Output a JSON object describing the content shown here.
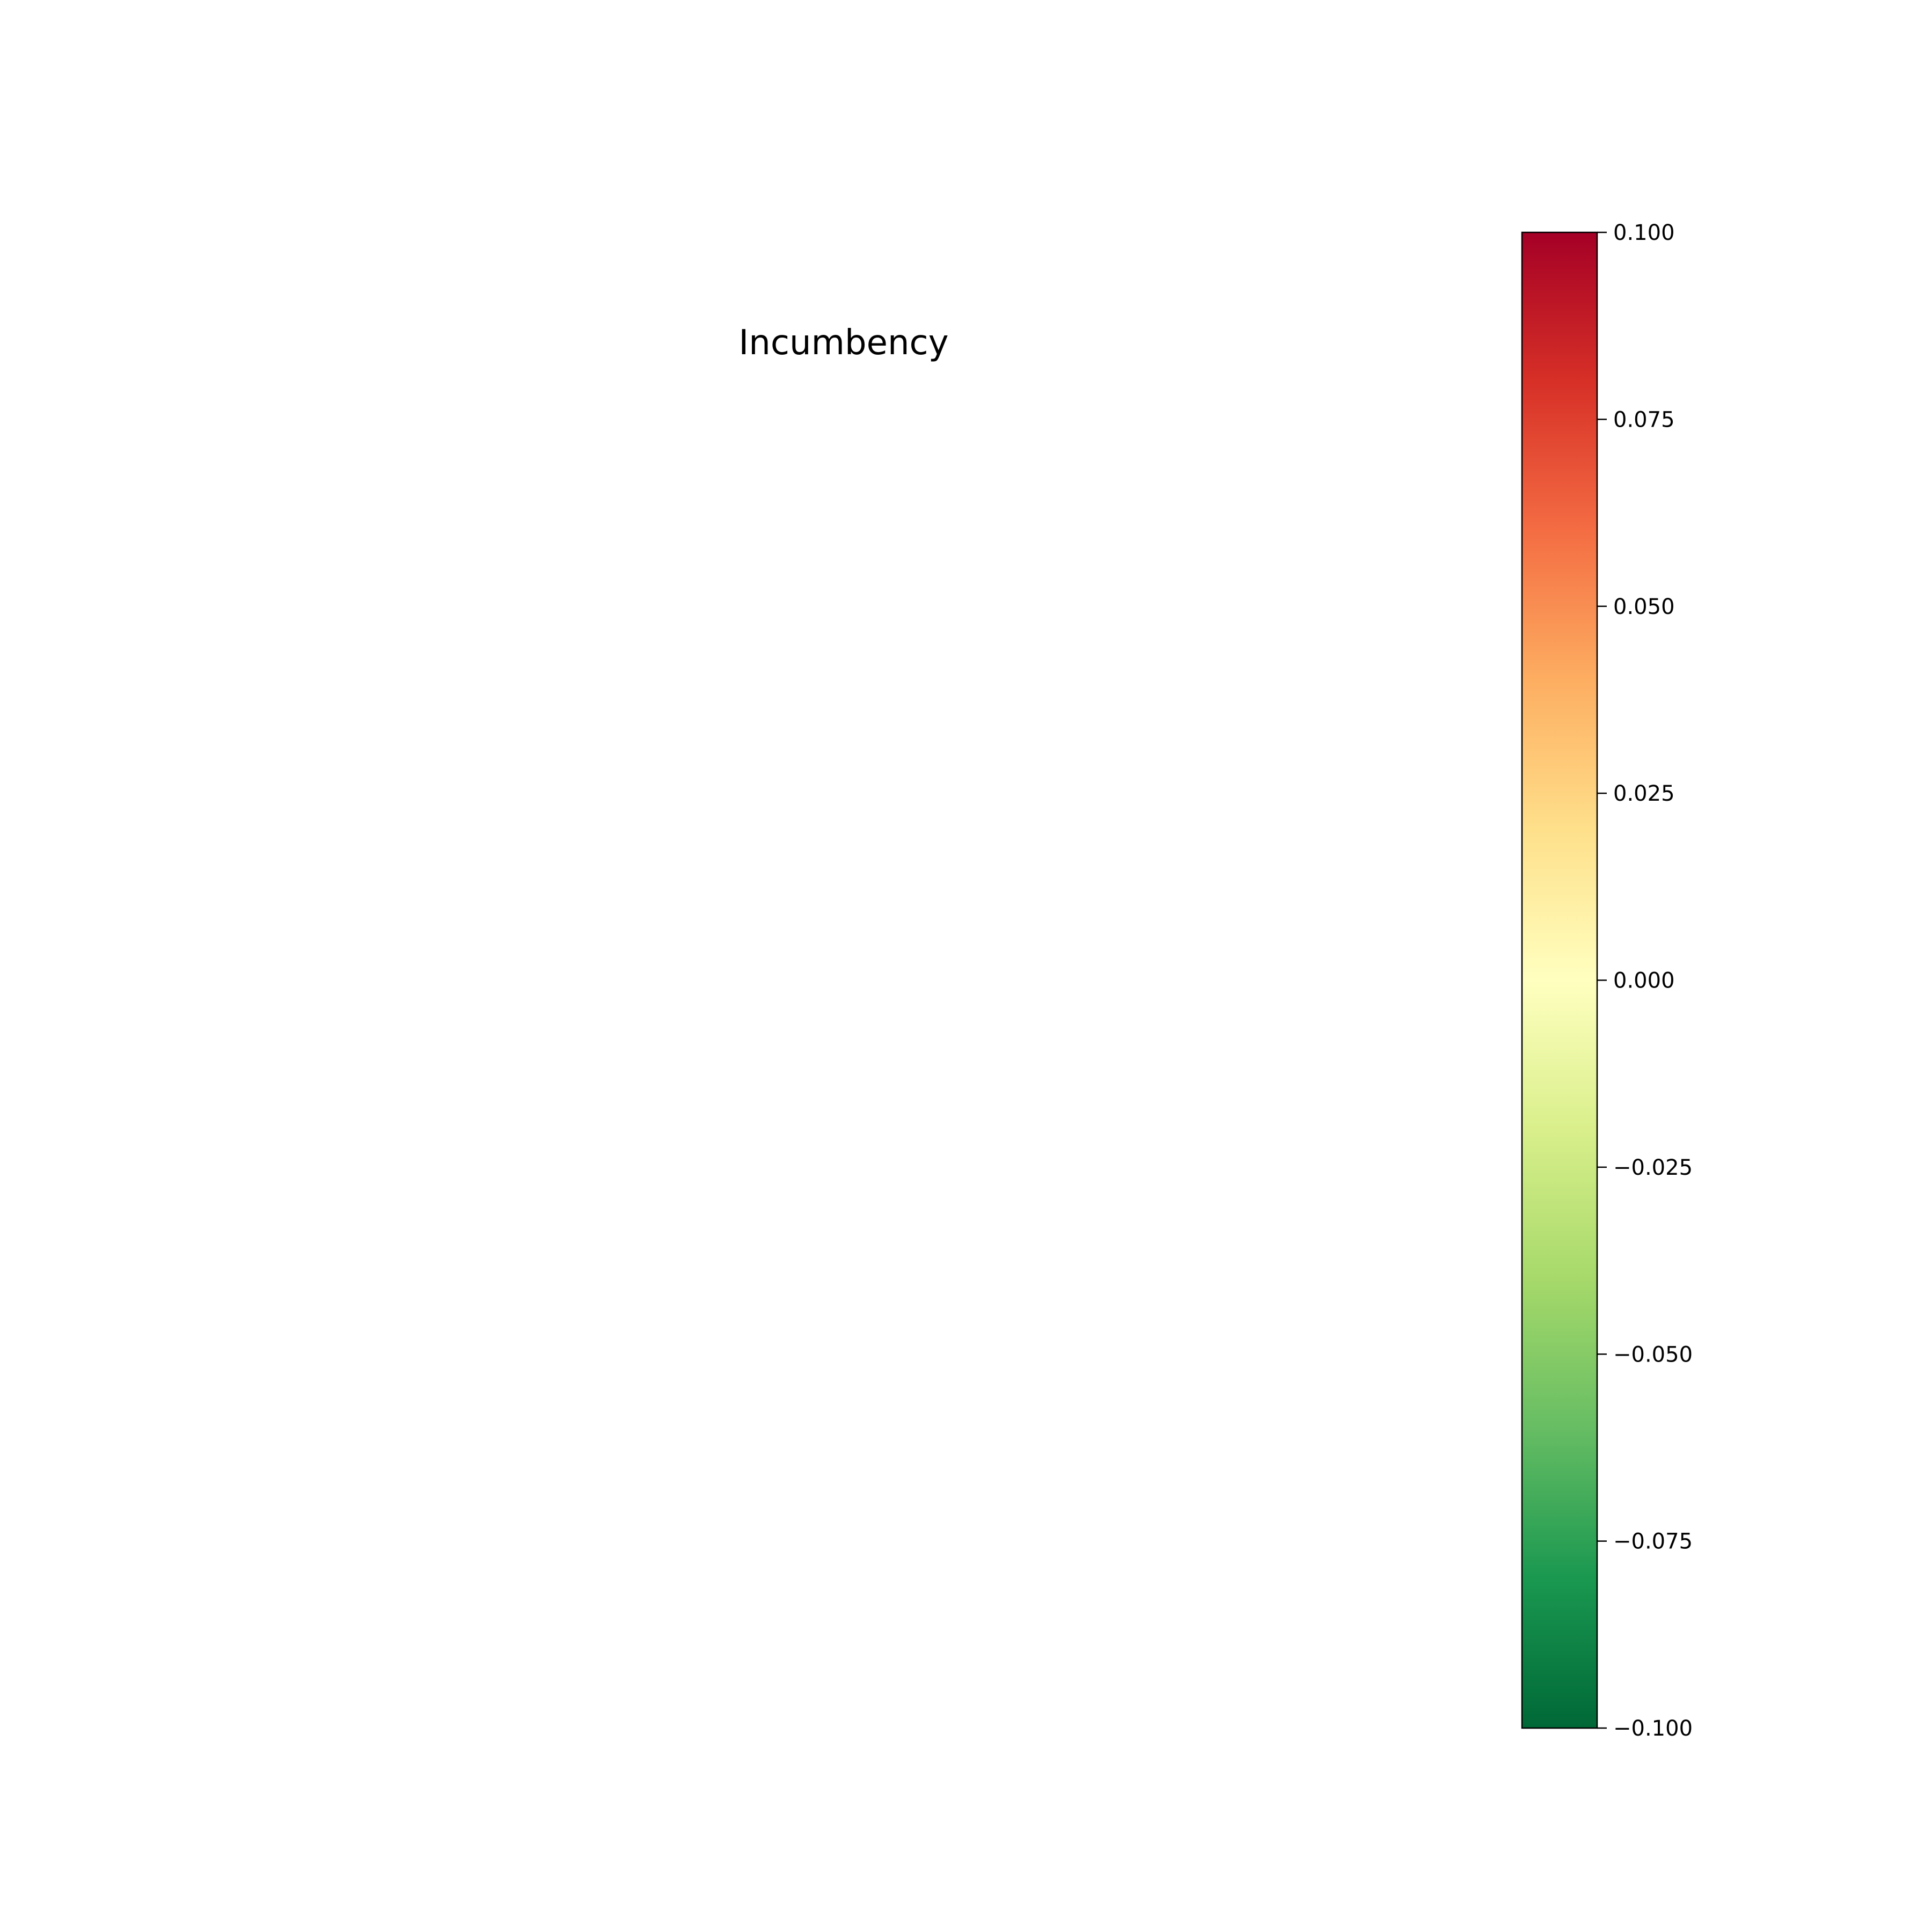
{
  "chart_data": {
    "type": "heatmap",
    "title": "Incumbency",
    "xlabel": "",
    "ylabel": "",
    "grid": false,
    "legend": "none",
    "colorbar": {
      "colormap": "RdYlGn_r",
      "range": [
        -0.1,
        0.1
      ],
      "ticks": [
        {
          "value": 0.1,
          "label": "0.100"
        },
        {
          "value": 0.075,
          "label": "0.075"
        },
        {
          "value": 0.05,
          "label": "0.050"
        },
        {
          "value": 0.025,
          "label": "0.025"
        },
        {
          "value": 0.0,
          "label": "0.000"
        },
        {
          "value": -0.025,
          "label": "−0.025"
        },
        {
          "value": -0.05,
          "label": "−0.050"
        },
        {
          "value": -0.075,
          "label": "−0.075"
        },
        {
          "value": -0.1,
          "label": "−0.100"
        }
      ],
      "colors": [
        "#006837",
        "#1a9850",
        "#66bd63",
        "#a6d96a",
        "#d9ef8b",
        "#ffffbf",
        "#fee08b",
        "#fdae61",
        "#f46d43",
        "#d73027",
        "#a50026"
      ]
    }
  }
}
